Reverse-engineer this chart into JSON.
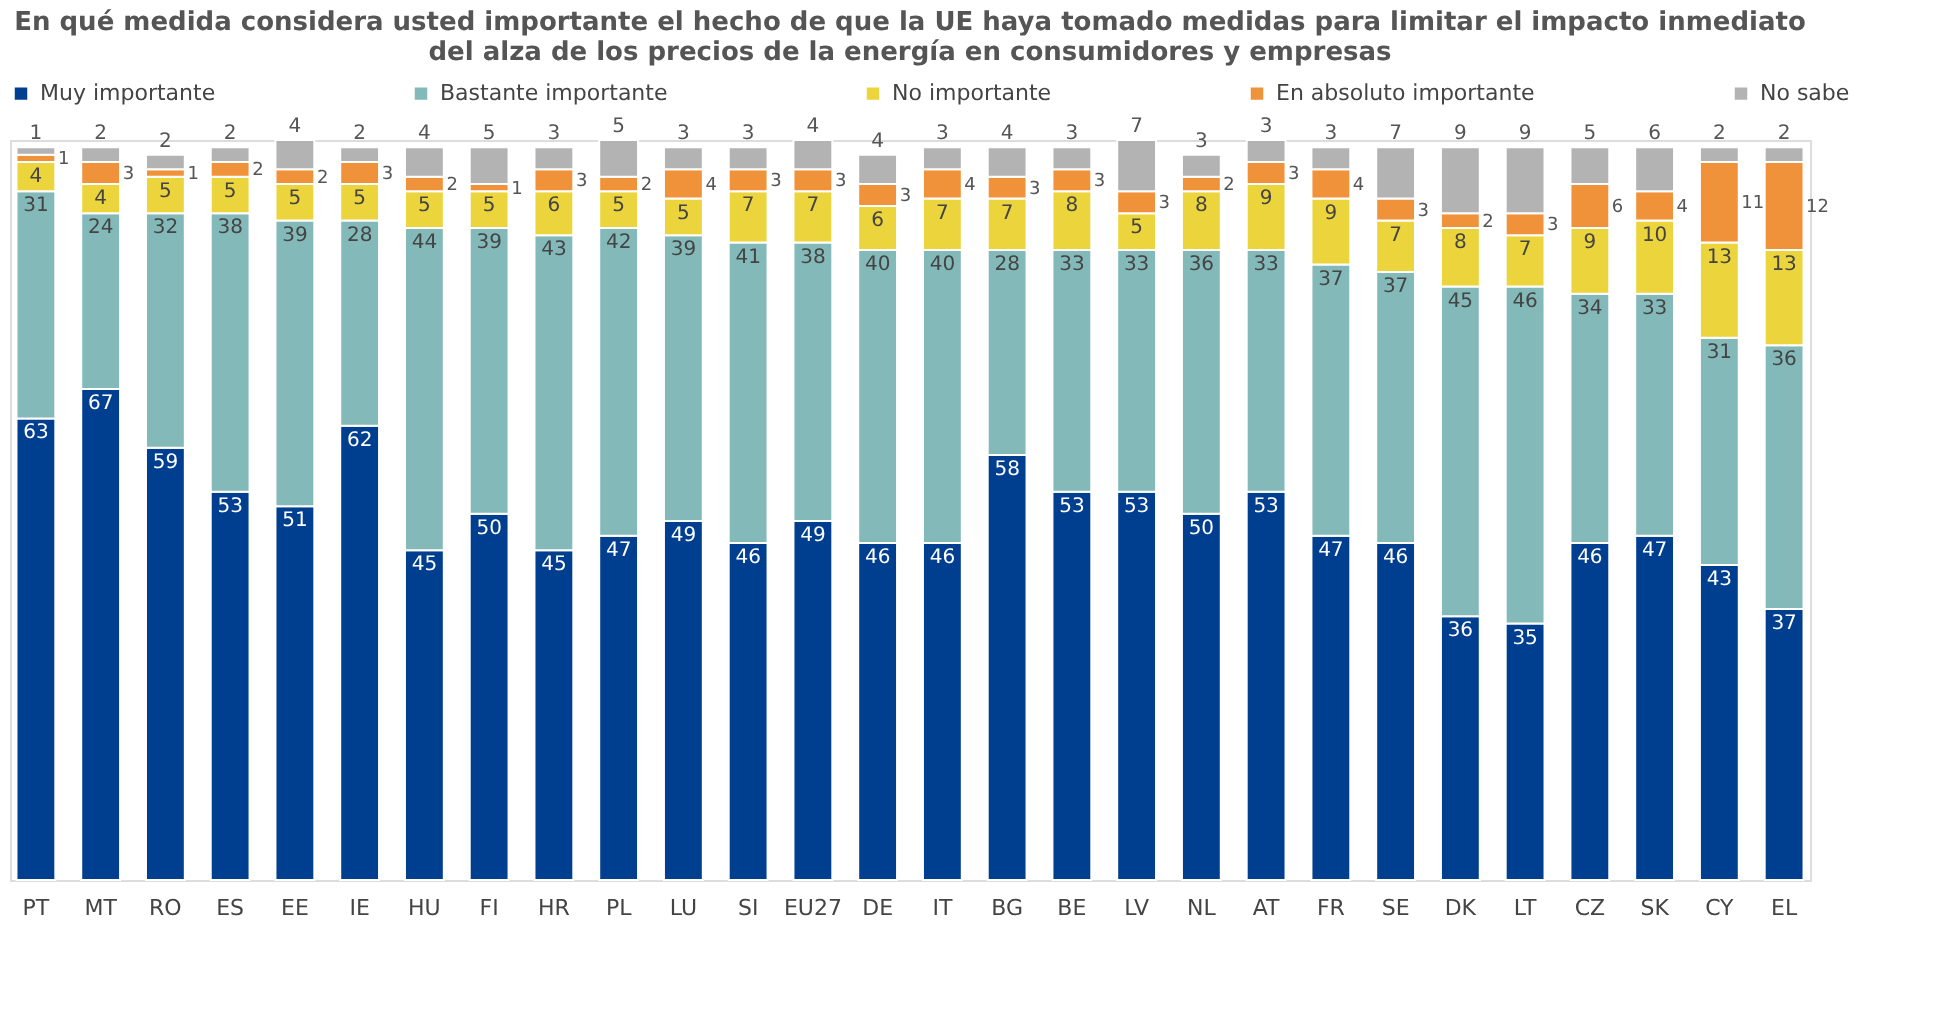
{
  "chart_data": {
    "type": "bar",
    "title": "En qué medida considera usted importante el hecho de que la UE haya tomado medidas para limitar el impacto inmediato del alza de los precios de la energía en consumidores y empresas",
    "categories": [
      "PT",
      "MT",
      "RO",
      "ES",
      "EE",
      "IE",
      "HU",
      "FI",
      "HR",
      "PL",
      "LU",
      "SI",
      "EU27",
      "DE",
      "IT",
      "BG",
      "BE",
      "LV",
      "NL",
      "AT",
      "FR",
      "SE",
      "DK",
      "LT",
      "CZ",
      "SK",
      "CY",
      "EL"
    ],
    "stacked": true,
    "data_labels": true,
    "legend": "top",
    "series": [
      {
        "name": "Muy importante",
        "color": "#003f8f",
        "values": [
          63,
          67,
          59,
          53,
          51,
          62,
          45,
          50,
          45,
          47,
          49,
          46,
          49,
          46,
          46,
          58,
          53,
          53,
          50,
          53,
          47,
          46,
          36,
          35,
          46,
          47,
          43,
          37
        ]
      },
      {
        "name": "Bastante importante",
        "color": "#84b9ba",
        "values": [
          31,
          24,
          32,
          38,
          39,
          28,
          44,
          39,
          43,
          42,
          39,
          41,
          38,
          40,
          40,
          28,
          33,
          33,
          36,
          33,
          37,
          37,
          45,
          46,
          34,
          33,
          31,
          36
        ]
      },
      {
        "name": "No importante",
        "color": "#ecd43c",
        "values": [
          4,
          4,
          5,
          5,
          5,
          5,
          5,
          5,
          6,
          5,
          5,
          7,
          7,
          6,
          7,
          7,
          8,
          5,
          8,
          9,
          9,
          7,
          8,
          7,
          9,
          10,
          13,
          13
        ]
      },
      {
        "name": "En absoluto importante",
        "color": "#f0923a",
        "values": [
          1,
          3,
          1,
          2,
          2,
          3,
          2,
          1,
          3,
          2,
          4,
          3,
          3,
          3,
          4,
          3,
          3,
          3,
          2,
          3,
          4,
          3,
          2,
          3,
          6,
          4,
          11,
          12
        ]
      },
      {
        "name": "No sabe",
        "color": "#b3b3b3",
        "values": [
          1,
          2,
          2,
          2,
          4,
          2,
          4,
          5,
          3,
          5,
          3,
          3,
          4,
          4,
          3,
          4,
          3,
          7,
          3,
          3,
          3,
          7,
          9,
          9,
          5,
          6,
          2,
          2
        ]
      }
    ]
  }
}
